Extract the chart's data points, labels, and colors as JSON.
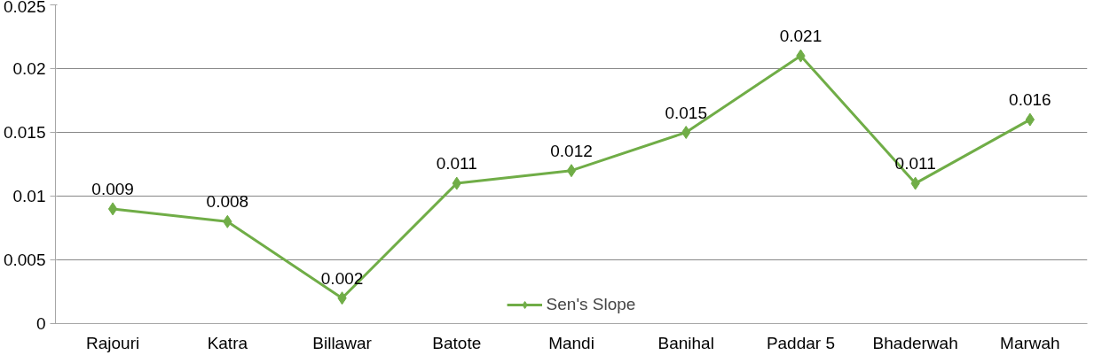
{
  "chart_data": {
    "type": "line",
    "categories": [
      "Rajouri",
      "Katra",
      "Billawar",
      "Batote",
      "Mandi",
      "Banihal",
      "Paddar 5",
      "Bhaderwah",
      "Marwah"
    ],
    "series": [
      {
        "name": "Sen's Slope",
        "color": "#70ad47",
        "values": [
          0.009,
          0.008,
          0.002,
          0.011,
          0.012,
          0.015,
          0.021,
          0.011,
          0.016
        ]
      }
    ],
    "ylim": [
      0,
      0.025
    ],
    "yticks": [
      0,
      0.005,
      0.01,
      0.015,
      0.02,
      0.025
    ],
    "grid": "y",
    "legend": "bottom",
    "marker": "diamond",
    "line_style": "solid",
    "data_labels": true
  }
}
